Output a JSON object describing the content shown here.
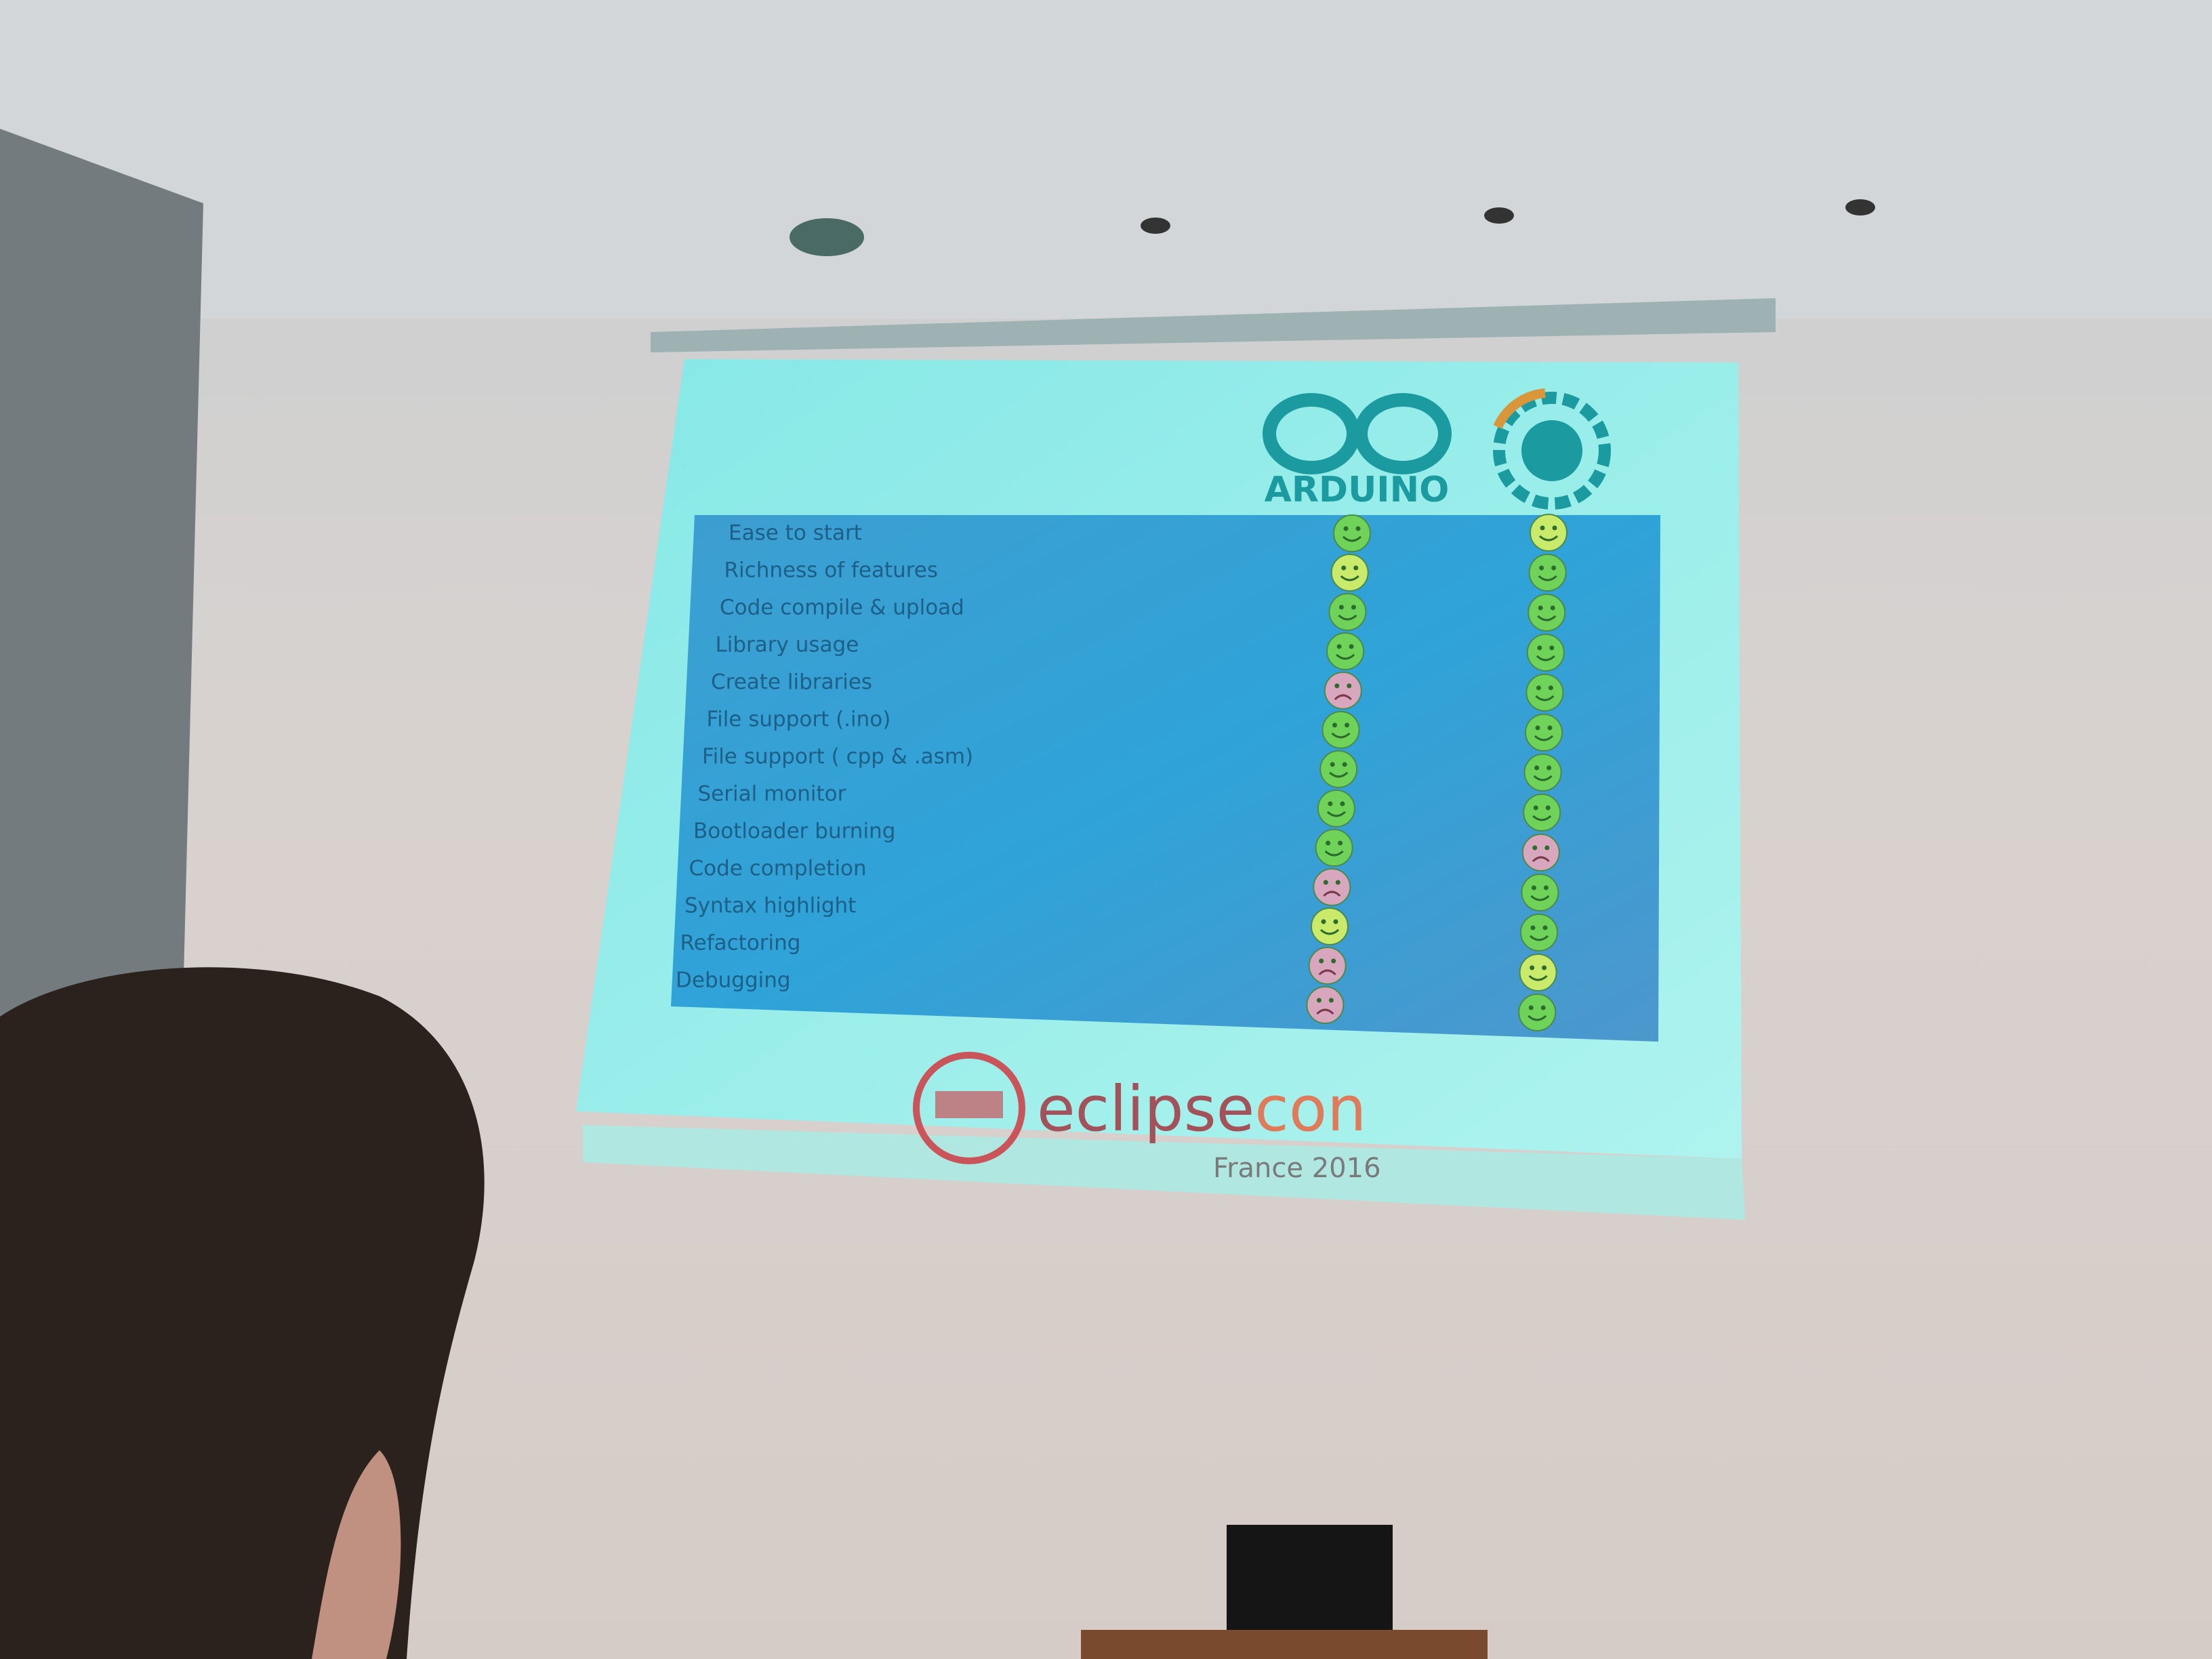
{
  "slide": {
    "arduino_logo": "ARDUINO",
    "rows": [
      {
        "label": "Ease to start",
        "ratings": [
          {
            "face": "smile",
            "color": "#6fd35a"
          },
          {
            "face": "smile",
            "color": "#c9ea6a"
          }
        ]
      },
      {
        "label": "Richness of features",
        "ratings": [
          {
            "face": "smile",
            "color": "#c9ea6a"
          },
          {
            "face": "smile",
            "color": "#6fd35a"
          }
        ]
      },
      {
        "label": "Code compile & upload",
        "ratings": [
          {
            "face": "smile",
            "color": "#6fd35a"
          },
          {
            "face": "smile",
            "color": "#6fd35a"
          }
        ]
      },
      {
        "label": "Library usage",
        "ratings": [
          {
            "face": "smile",
            "color": "#6fd35a"
          },
          {
            "face": "smile",
            "color": "#6fd35a"
          }
        ]
      },
      {
        "label": "Create libraries",
        "ratings": [
          {
            "face": "frown",
            "color": "#d8a7bd"
          },
          {
            "face": "smile",
            "color": "#6fd35a"
          }
        ]
      },
      {
        "label": "File support (.ino)",
        "ratings": [
          {
            "face": "smile",
            "color": "#6fd35a"
          },
          {
            "face": "smile",
            "color": "#6fd35a"
          }
        ]
      },
      {
        "label": "File support ( cpp & .asm)",
        "ratings": [
          {
            "face": "smile",
            "color": "#6fd35a"
          },
          {
            "face": "smile",
            "color": "#6fd35a"
          }
        ]
      },
      {
        "label": "Serial monitor",
        "ratings": [
          {
            "face": "smile",
            "color": "#6fd35a"
          },
          {
            "face": "smile",
            "color": "#6fd35a"
          }
        ]
      },
      {
        "label": "Bootloader burning",
        "ratings": [
          {
            "face": "smile",
            "color": "#6fd35a"
          },
          {
            "face": "frown",
            "color": "#d8a7bd"
          }
        ]
      },
      {
        "label": "Code completion",
        "ratings": [
          {
            "face": "frown",
            "color": "#d8a7bd"
          },
          {
            "face": "smile",
            "color": "#6fd35a"
          }
        ]
      },
      {
        "label": "Syntax highlight",
        "ratings": [
          {
            "face": "smile",
            "color": "#c9ea6a"
          },
          {
            "face": "smile",
            "color": "#6fd35a"
          }
        ]
      },
      {
        "label": "Refactoring",
        "ratings": [
          {
            "face": "frown",
            "color": "#d8a7bd"
          },
          {
            "face": "smile",
            "color": "#c9ea6a"
          }
        ]
      },
      {
        "label": "Debugging",
        "ratings": [
          {
            "face": "frown",
            "color": "#d8a7bd"
          },
          {
            "face": "smile",
            "color": "#6fd35a"
          }
        ]
      }
    ],
    "footer": {
      "logo_words": [
        "eclipse",
        "con"
      ],
      "edition": "France 2016"
    }
  }
}
